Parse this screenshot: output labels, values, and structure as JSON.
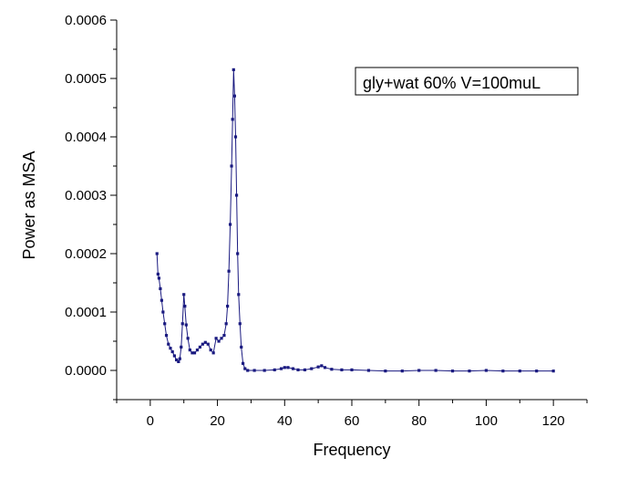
{
  "chart_data": {
    "type": "line",
    "title": "",
    "xlabel": "Frequency",
    "ylabel": "Power as MSA",
    "xlim": [
      -10,
      130
    ],
    "ylim": [
      -5e-05,
      0.0006
    ],
    "xticks": [
      0,
      20,
      40,
      60,
      80,
      100,
      120
    ],
    "xtick_labels": [
      "0",
      "20",
      "40",
      "60",
      "80",
      "100",
      "120"
    ],
    "yticks": [
      0.0,
      0.0001,
      0.0002,
      0.0003,
      0.0004,
      0.0005,
      0.0006
    ],
    "ytick_labels": [
      "0.0000",
      "0.0001",
      "0.0002",
      "0.0003",
      "0.0004",
      "0.0005",
      "0.0006"
    ],
    "grid": false,
    "legend": {
      "text": "gly+wat 60% V=100muL",
      "placement": "top-right"
    },
    "series": [
      {
        "name": "gly+wat 60% V=100muL",
        "color": "#1a1a80",
        "marker": "square",
        "points": [
          [
            2.0,
            0.0002
          ],
          [
            2.3,
            0.000165
          ],
          [
            2.6,
            0.000158
          ],
          [
            3.0,
            0.00014
          ],
          [
            3.4,
            0.00012
          ],
          [
            3.8,
            0.0001
          ],
          [
            4.3,
            8e-05
          ],
          [
            4.8,
            6e-05
          ],
          [
            5.4,
            4.5e-05
          ],
          [
            6.0,
            3.8e-05
          ],
          [
            6.6,
            3.2e-05
          ],
          [
            7.2,
            2.5e-05
          ],
          [
            7.8,
            1.8e-05
          ],
          [
            8.4,
            1.5e-05
          ],
          [
            8.8,
            2e-05
          ],
          [
            9.2,
            4e-05
          ],
          [
            9.6,
            8e-05
          ],
          [
            10.0,
            0.00013
          ],
          [
            10.3,
            0.00011
          ],
          [
            10.7,
            7.8e-05
          ],
          [
            11.2,
            5.5e-05
          ],
          [
            11.8,
            3.5e-05
          ],
          [
            12.5,
            3e-05
          ],
          [
            13.2,
            3e-05
          ],
          [
            14.0,
            3.5e-05
          ],
          [
            14.8,
            4e-05
          ],
          [
            15.6,
            4.5e-05
          ],
          [
            16.4,
            4.8e-05
          ],
          [
            17.2,
            4.5e-05
          ],
          [
            18.0,
            3.5e-05
          ],
          [
            18.8,
            3e-05
          ],
          [
            19.6,
            5.5e-05
          ],
          [
            20.4,
            5e-05
          ],
          [
            21.2,
            5.5e-05
          ],
          [
            22.0,
            6e-05
          ],
          [
            22.6,
            8e-05
          ],
          [
            23.0,
            0.00011
          ],
          [
            23.4,
            0.00017
          ],
          [
            23.8,
            0.00025
          ],
          [
            24.2,
            0.00035
          ],
          [
            24.5,
            0.00043
          ],
          [
            24.8,
            0.000515
          ],
          [
            25.1,
            0.00047
          ],
          [
            25.4,
            0.0004
          ],
          [
            25.7,
            0.0003
          ],
          [
            26.0,
            0.0002
          ],
          [
            26.3,
            0.00013
          ],
          [
            26.7,
            8e-05
          ],
          [
            27.1,
            4e-05
          ],
          [
            27.6,
            1.2e-05
          ],
          [
            28.2,
            3e-06
          ],
          [
            29.0,
            0.0
          ],
          [
            31.0,
            0.0
          ],
          [
            34.0,
            0.0
          ],
          [
            37.0,
            1e-06
          ],
          [
            39.0,
            3e-06
          ],
          [
            40.0,
            5e-06
          ],
          [
            41.0,
            5e-06
          ],
          [
            42.5,
            3e-06
          ],
          [
            44.0,
            1e-06
          ],
          [
            46.0,
            1e-06
          ],
          [
            48.0,
            3e-06
          ],
          [
            50.0,
            6e-06
          ],
          [
            51.0,
            8e-06
          ],
          [
            52.0,
            5e-06
          ],
          [
            54.0,
            2e-06
          ],
          [
            57.0,
            1e-06
          ],
          [
            60.0,
            1e-06
          ],
          [
            65.0,
            0.0
          ],
          [
            70.0,
            -1e-06
          ],
          [
            75.0,
            -1e-06
          ],
          [
            80.0,
            0.0
          ],
          [
            85.0,
            0.0
          ],
          [
            90.0,
            -1e-06
          ],
          [
            95.0,
            -1e-06
          ],
          [
            100.0,
            0.0
          ],
          [
            105.0,
            -1e-06
          ],
          [
            110.0,
            -1e-06
          ],
          [
            115.0,
            -1e-06
          ],
          [
            120.0,
            -1e-06
          ]
        ]
      }
    ]
  }
}
